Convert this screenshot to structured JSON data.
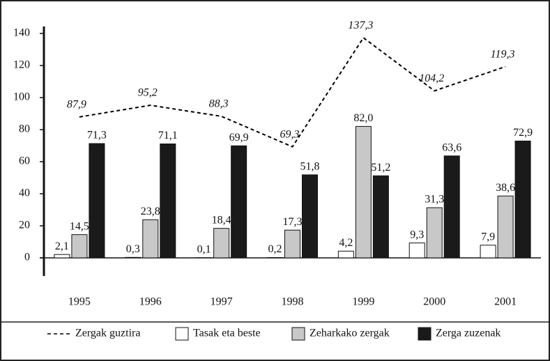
{
  "chart_data": {
    "type": "bar",
    "categories": [
      "1995",
      "1996",
      "1997",
      "1998",
      "1999",
      "2000",
      "2001"
    ],
    "series": [
      {
        "name": "Zergak guztira",
        "type": "line",
        "color": "#000000",
        "values": [
          87.9,
          95.2,
          88.3,
          69.3,
          137.3,
          104.2,
          119.3
        ],
        "value_labels": [
          "87,9",
          "95,2",
          "88,3",
          "69,3",
          "137,3",
          "104,2",
          "119,3"
        ]
      },
      {
        "name": "Tasak eta beste",
        "type": "bar",
        "color": "#ffffff",
        "values": [
          2.1,
          0.3,
          0.1,
          0.2,
          4.2,
          9.3,
          7.9
        ],
        "value_labels": [
          "2,1",
          "0,3",
          "0,1",
          "0,2",
          "4,2",
          "9,3",
          "7,9"
        ]
      },
      {
        "name": "Zeharkako zergak",
        "type": "bar",
        "color": "#c8c8c8",
        "values": [
          14.5,
          23.8,
          18.4,
          17.3,
          82.0,
          31.3,
          38.6
        ],
        "value_labels": [
          "14,5",
          "23,8",
          "18,4",
          "17,3",
          "82,0",
          "31,3",
          "38,6"
        ]
      },
      {
        "name": "Zerga zuzenak",
        "type": "bar",
        "color": "#1a1a1a",
        "values": [
          71.3,
          71.1,
          69.9,
          51.8,
          51.2,
          63.6,
          72.9
        ],
        "value_labels": [
          "71,3",
          "71,1",
          "69,9",
          "51,8",
          "51,2",
          "63,6",
          "72,9"
        ]
      }
    ],
    "ylim": [
      0,
      140
    ],
    "yticks": [
      0,
      20,
      40,
      60,
      80,
      100,
      120,
      140
    ],
    "grid": false,
    "legend": "bottom"
  }
}
